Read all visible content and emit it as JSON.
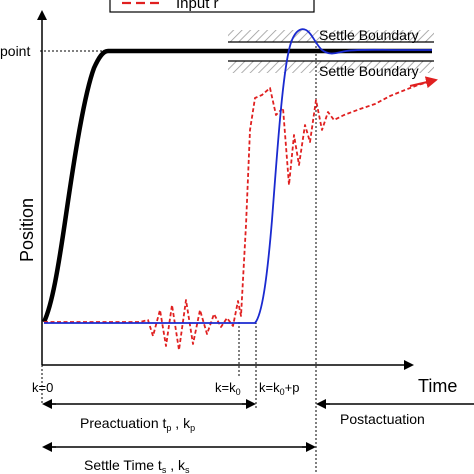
{
  "legend": {
    "entry_input": "Input r"
  },
  "labels": {
    "setpoint": "point",
    "settle_boundary_upper": "Settle Boundary",
    "settle_boundary_lower": "Settle Boundary",
    "y_axis": "Position",
    "x_axis": "Time"
  },
  "ticks": {
    "k0_start": "k=0",
    "k_k0": "k=k",
    "k_k0_sub": "0",
    "k_k0p": "k=k",
    "k_k0p_sub": "0",
    "k_k0p_tail": "+p"
  },
  "spans": {
    "preactuation": "Preactuation t",
    "preactuation_sub1": "p",
    "preactuation_mid": " , k",
    "preactuation_sub2": "p",
    "postactuation": "Postactuation",
    "settle_time": "Settle Time t",
    "settle_time_sub1": "s",
    "settle_time_mid": " , k",
    "settle_time_sub2": "s"
  },
  "colors": {
    "reference": "#000000",
    "input": "#e02020",
    "output": "#1a2ad0",
    "hatch": "#9a9a9a"
  }
}
